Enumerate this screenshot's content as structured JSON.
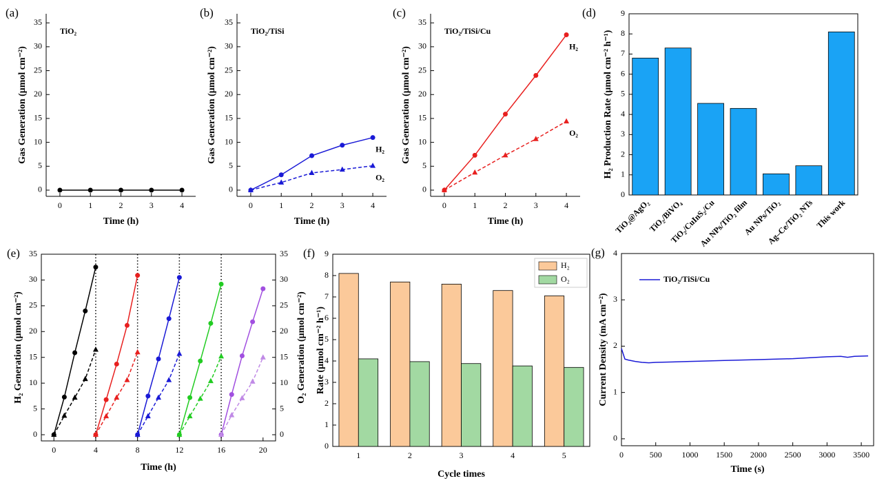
{
  "chart_data": [
    {
      "type": "line",
      "label": "(a)",
      "annotation": "TiO₂",
      "xlabel": "Time (h)",
      "ylabel": "Gas Generation (μmol cm⁻²)",
      "x": [
        0,
        1,
        2,
        3,
        4
      ],
      "xlim": [
        -0.45,
        4.45
      ],
      "xticks": [
        0,
        1,
        2,
        3,
        4
      ],
      "ylim": [
        -1.3,
        36.9
      ],
      "yticks": [
        0,
        5,
        10,
        15,
        20,
        25,
        30,
        35
      ],
      "box": false,
      "series": [
        {
          "color": "#000000",
          "marker": "circle",
          "dashed": false,
          "values": [
            0,
            0,
            0,
            0,
            0
          ]
        }
      ]
    },
    {
      "type": "line",
      "label": "(b)",
      "annotation": "TiO₂/TiSi",
      "xlabel": "Time (h)",
      "ylabel": "Gas Generation (μmol cm⁻²)",
      "x": [
        0,
        1,
        2,
        3,
        4
      ],
      "xlim": [
        -0.45,
        4.45
      ],
      "xticks": [
        0,
        1,
        2,
        3,
        4
      ],
      "ylim": [
        -1.3,
        36.9
      ],
      "yticks": [
        0,
        5,
        10,
        15,
        20,
        25,
        30,
        35
      ],
      "box": false,
      "legend": "direct",
      "series": [
        {
          "name": "H₂",
          "color": "#1a1ad6",
          "marker": "circle",
          "dashed": false,
          "values": [
            0,
            3.2,
            7.2,
            9.4,
            11.0
          ]
        },
        {
          "name": "O₂",
          "color": "#1a1ad6",
          "marker": "triangle",
          "dashed": true,
          "values": [
            0,
            1.6,
            3.6,
            4.3,
            5.1
          ]
        }
      ]
    },
    {
      "type": "line",
      "label": "(c)",
      "annotation": "TiO₂/TiSi/Cu",
      "xlabel": "Time (h)",
      "ylabel": "Gas Generation (μmol cm⁻²)",
      "x": [
        0,
        1,
        2,
        3,
        4
      ],
      "xlim": [
        -0.45,
        4.45
      ],
      "xticks": [
        0,
        1,
        2,
        3,
        4
      ],
      "ylim": [
        -1.3,
        36.9
      ],
      "yticks": [
        0,
        5,
        10,
        15,
        20,
        25,
        30,
        35
      ],
      "box": false,
      "legend": "direct",
      "series": [
        {
          "name": "H₂",
          "color": "#e8201f",
          "marker": "circle",
          "dashed": false,
          "values": [
            0,
            7.3,
            15.9,
            24.0,
            32.5
          ]
        },
        {
          "name": "O₂",
          "color": "#e8201f",
          "marker": "triangle",
          "dashed": true,
          "values": [
            0,
            3.7,
            7.3,
            10.7,
            14.4
          ]
        }
      ]
    },
    {
      "type": "bar",
      "label": "(d)",
      "ylabel": "H₂ Production Rate (μmol cm⁻² h⁻¹)",
      "box": true,
      "categories": [
        "TiO₂@AgO₂",
        "TiO₂/BiVO₄",
        "TiO₂/CuInS₂/Cu",
        "Au NPs/TiO₂ film",
        "Au NPs/TiO₂",
        "Ag–Ce/TiO₂ NTs",
        "This work"
      ],
      "values": [
        6.8,
        7.3,
        4.55,
        4.3,
        1.05,
        1.45,
        8.1
      ],
      "color": "#1aa3f5",
      "ylim": [
        0,
        9
      ],
      "yticks": [
        0,
        1,
        2,
        3,
        4,
        5,
        6,
        7,
        8,
        9
      ]
    },
    {
      "type": "line",
      "label": "(e)",
      "xlabel": "Time (h)",
      "ylabel": "H₂ Generation (μmol cm⁻²)",
      "y2label": "O₂ Generation (μmol cm⁻²)",
      "box": true,
      "xlim": [
        -1.2,
        21.2
      ],
      "xticks": [
        0,
        4,
        8,
        12,
        16,
        20
      ],
      "ylim": [
        -1.2,
        35
      ],
      "yticks": [
        0,
        5,
        10,
        15,
        20,
        25,
        30,
        35
      ],
      "y2lim": [
        -1.2,
        35
      ],
      "y2ticks": [
        0,
        5,
        10,
        15,
        20,
        25,
        30,
        35
      ],
      "vlines": [
        4,
        8,
        12,
        16
      ],
      "series": [
        {
          "color": "#000000",
          "marker": "circle",
          "dashed": false,
          "x": [
            0,
            1,
            2,
            3,
            4
          ],
          "values": [
            0,
            7.3,
            15.9,
            24.0,
            32.5
          ]
        },
        {
          "color": "#000000",
          "marker": "triangle",
          "dashed": true,
          "axis": "y2",
          "x": [
            0,
            1,
            2,
            3,
            4
          ],
          "values": [
            0,
            3.7,
            7.2,
            10.8,
            16.5
          ]
        },
        {
          "color": "#e8201f",
          "marker": "circle",
          "dashed": false,
          "x": [
            4,
            5,
            6,
            7,
            8
          ],
          "values": [
            0,
            6.8,
            13.7,
            21.2,
            30.9
          ]
        },
        {
          "color": "#e8201f",
          "marker": "triangle",
          "dashed": true,
          "axis": "y2",
          "x": [
            4,
            5,
            6,
            7,
            8
          ],
          "values": [
            0,
            3.6,
            7.2,
            10.6,
            16.0
          ]
        },
        {
          "color": "#1a1ad6",
          "marker": "circle",
          "dashed": false,
          "x": [
            8,
            9,
            10,
            11,
            12
          ],
          "values": [
            0,
            7.5,
            14.7,
            22.5,
            30.5
          ]
        },
        {
          "color": "#1a1ad6",
          "marker": "triangle",
          "dashed": true,
          "axis": "y2",
          "x": [
            8,
            9,
            10,
            11,
            12
          ],
          "values": [
            0,
            3.6,
            7.2,
            10.6,
            15.7
          ]
        },
        {
          "color": "#22cc22",
          "marker": "circle",
          "dashed": false,
          "x": [
            12,
            13,
            14,
            15,
            16
          ],
          "values": [
            0,
            7.2,
            14.3,
            21.6,
            29.2
          ]
        },
        {
          "color": "#22cc22",
          "marker": "triangle",
          "dashed": true,
          "axis": "y2",
          "x": [
            12,
            13,
            14,
            15,
            16
          ],
          "values": [
            0,
            3.6,
            7.0,
            10.4,
            15.2
          ]
        },
        {
          "color": "#a14fe0",
          "marker": "circle",
          "dashed": false,
          "x": [
            16,
            17,
            18,
            19,
            20
          ],
          "values": [
            0,
            7.8,
            15.3,
            21.9,
            28.3
          ]
        },
        {
          "color": "#c08ae6",
          "marker": "triangle",
          "dashed": true,
          "axis": "y2",
          "x": [
            16,
            17,
            18,
            19,
            20
          ],
          "values": [
            0,
            3.8,
            7.1,
            10.3,
            15.0
          ]
        }
      ]
    },
    {
      "type": "bar",
      "label": "(f)",
      "xlabel": "Cycle times",
      "ylabel": "Rate (μmol cm⁻² h⁻¹)",
      "box": true,
      "legend": "upper right",
      "categories": [
        "1",
        "2",
        "3",
        "4",
        "5"
      ],
      "ylim": [
        0,
        9
      ],
      "yticks": [
        0,
        1,
        2,
        3,
        4,
        5,
        6,
        7,
        8,
        9
      ],
      "series": [
        {
          "name": "H₂",
          "color": "#fbc99a",
          "values": [
            8.1,
            7.7,
            7.6,
            7.3,
            7.05
          ]
        },
        {
          "name": "O₂",
          "color": "#a2d9a2",
          "values": [
            4.1,
            3.97,
            3.88,
            3.77,
            3.7
          ]
        }
      ]
    },
    {
      "type": "line",
      "label": "(g)",
      "xlabel": "Time (s)",
      "ylabel": "Current Density (mA cm⁻²)",
      "box": true,
      "legend": "upper left",
      "xlim": [
        0,
        3680
      ],
      "xticks": [
        0,
        500,
        1000,
        1500,
        2000,
        2500,
        3000,
        3500
      ],
      "ylim": [
        -0.15,
        4
      ],
      "yticks": [
        0,
        1,
        2,
        3,
        4
      ],
      "x": [
        0,
        50,
        100,
        200,
        300,
        400,
        500,
        750,
        1000,
        1500,
        2000,
        2500,
        3000,
        3200,
        3300,
        3400,
        3600
      ],
      "series": [
        {
          "name": "TiO₂/TiSi/Cu",
          "color": "#1a1ad6",
          "marker": "none",
          "dashed": false,
          "values": [
            1.95,
            1.72,
            1.7,
            1.67,
            1.65,
            1.64,
            1.65,
            1.66,
            1.67,
            1.69,
            1.71,
            1.73,
            1.77,
            1.78,
            1.76,
            1.78,
            1.79
          ]
        }
      ]
    }
  ]
}
